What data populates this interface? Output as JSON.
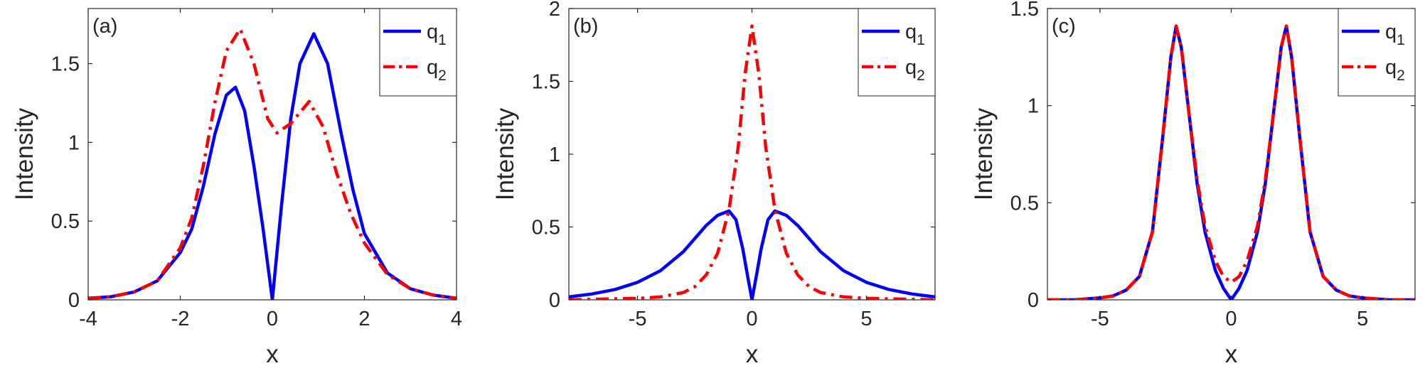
{
  "figure": {
    "colors": {
      "series1": "#0000ff",
      "series2": "#ff0000",
      "axis": "#262626"
    }
  },
  "chart_data": [
    {
      "type": "line",
      "panel_label": "(a)",
      "xlabel": "x",
      "ylabel": "Intensity",
      "xlim": [
        -4,
        4
      ],
      "ylim": [
        0,
        1.85
      ],
      "xticks": [
        -4,
        -2,
        0,
        2,
        4
      ],
      "xtick_labels": [
        "-4",
        "-2",
        "0",
        "2",
        "4"
      ],
      "yticks": [
        0,
        0.5,
        1,
        1.5
      ],
      "ytick_labels": [
        "0",
        "0.5",
        "1",
        "1.5"
      ],
      "grid": false,
      "legend": {
        "position": "top-right",
        "entries": [
          {
            "base": "q",
            "sub": "1",
            "style": "solid"
          },
          {
            "base": "q",
            "sub": "2",
            "style": "dashdot"
          }
        ]
      },
      "series": [
        {
          "style": "solid",
          "color": "#0000ff",
          "x": [
            -4,
            -3.5,
            -3,
            -2.5,
            -2,
            -1.75,
            -1.5,
            -1.25,
            -1,
            -0.8,
            -0.6,
            -0.4,
            -0.2,
            0,
            0.2,
            0.4,
            0.6,
            0.9,
            1.2,
            1.5,
            1.75,
            2,
            2.5,
            3,
            3.5,
            4
          ],
          "y": [
            0.01,
            0.02,
            0.05,
            0.12,
            0.3,
            0.45,
            0.72,
            1.05,
            1.3,
            1.35,
            1.2,
            0.85,
            0.45,
            0,
            0.6,
            1.15,
            1.5,
            1.69,
            1.5,
            1.05,
            0.7,
            0.42,
            0.17,
            0.07,
            0.03,
            0.01
          ]
        },
        {
          "style": "dashdot",
          "color": "#ff0000",
          "x": [
            -4,
            -3.5,
            -3,
            -2.5,
            -2,
            -1.75,
            -1.5,
            -1.25,
            -1,
            -0.7,
            -0.4,
            -0.1,
            0.1,
            0.4,
            0.8,
            1.1,
            1.4,
            1.7,
            2,
            2.5,
            3,
            3.5,
            4
          ],
          "y": [
            0.01,
            0.02,
            0.05,
            0.12,
            0.33,
            0.52,
            0.85,
            1.25,
            1.58,
            1.72,
            1.5,
            1.15,
            1.06,
            1.12,
            1.26,
            1.1,
            0.8,
            0.55,
            0.36,
            0.16,
            0.07,
            0.03,
            0.01
          ]
        }
      ]
    },
    {
      "type": "line",
      "panel_label": "(b)",
      "xlabel": "x",
      "ylabel": "Intensity",
      "xlim": [
        -8,
        8
      ],
      "ylim": [
        0,
        2
      ],
      "xticks": [
        -5,
        0,
        5
      ],
      "xtick_labels": [
        "-5",
        "0",
        "5"
      ],
      "yticks": [
        0,
        0.5,
        1,
        1.5,
        2
      ],
      "ytick_labels": [
        "0",
        "0.5",
        "1",
        "1.5",
        "2"
      ],
      "grid": false,
      "legend": {
        "position": "top-right",
        "entries": [
          {
            "base": "q",
            "sub": "1",
            "style": "solid"
          },
          {
            "base": "q",
            "sub": "2",
            "style": "dashdot"
          }
        ]
      },
      "series": [
        {
          "style": "solid",
          "color": "#0000ff",
          "x": [
            -8,
            -7,
            -6,
            -5,
            -4,
            -3,
            -2.5,
            -2,
            -1.5,
            -1,
            -0.7,
            -0.4,
            -0.2,
            0,
            0.2,
            0.4,
            0.7,
            1,
            1.5,
            2,
            2.5,
            3,
            4,
            5,
            6,
            7,
            8
          ],
          "y": [
            0.02,
            0.04,
            0.07,
            0.12,
            0.2,
            0.33,
            0.42,
            0.51,
            0.58,
            0.61,
            0.55,
            0.35,
            0.17,
            0,
            0.17,
            0.35,
            0.55,
            0.61,
            0.58,
            0.51,
            0.42,
            0.33,
            0.2,
            0.12,
            0.07,
            0.04,
            0.02
          ]
        },
        {
          "style": "dashdot",
          "color": "#ff0000",
          "x": [
            -8,
            -5,
            -4,
            -3,
            -2.5,
            -2,
            -1.5,
            -1,
            -0.6,
            -0.3,
            0,
            0.3,
            0.6,
            1,
            1.5,
            2,
            2.5,
            3,
            4,
            5,
            8
          ],
          "y": [
            0,
            0.01,
            0.02,
            0.05,
            0.09,
            0.17,
            0.32,
            0.62,
            1.05,
            1.55,
            1.88,
            1.55,
            1.05,
            0.62,
            0.32,
            0.17,
            0.09,
            0.05,
            0.02,
            0.01,
            0
          ]
        }
      ]
    },
    {
      "type": "line",
      "panel_label": "(c)",
      "xlabel": "x",
      "ylabel": "Intensity",
      "xlim": [
        -7,
        7
      ],
      "ylim": [
        0,
        1.5
      ],
      "xticks": [
        -5,
        0,
        5
      ],
      "xtick_labels": [
        "-5",
        "0",
        "5"
      ],
      "yticks": [
        0,
        0.5,
        1,
        1.5
      ],
      "ytick_labels": [
        "0",
        "0.5",
        "1",
        "1.5"
      ],
      "grid": false,
      "legend": {
        "position": "top-right",
        "entries": [
          {
            "base": "q",
            "sub": "1",
            "style": "solid"
          },
          {
            "base": "q",
            "sub": "2",
            "style": "dashdot"
          }
        ]
      },
      "series": [
        {
          "style": "solid",
          "color": "#0000ff",
          "x": [
            -7,
            -6,
            -5,
            -4.5,
            -4,
            -3.5,
            -3,
            -2.6,
            -2.3,
            -2.1,
            -1.9,
            -1.6,
            -1.3,
            -1,
            -0.6,
            -0.3,
            0,
            0.3,
            0.6,
            1,
            1.3,
            1.6,
            1.9,
            2.1,
            2.3,
            2.6,
            3,
            3.5,
            4,
            4.5,
            5,
            6,
            7
          ],
          "y": [
            0,
            0,
            0.01,
            0.02,
            0.05,
            0.12,
            0.35,
            0.85,
            1.25,
            1.41,
            1.3,
            0.95,
            0.6,
            0.35,
            0.15,
            0.06,
            0,
            0.06,
            0.15,
            0.35,
            0.6,
            0.95,
            1.3,
            1.41,
            1.25,
            0.85,
            0.35,
            0.12,
            0.05,
            0.02,
            0.01,
            0,
            0
          ]
        },
        {
          "style": "dashdot",
          "color": "#ff0000",
          "x": [
            -7,
            -6,
            -5,
            -4.5,
            -4,
            -3.5,
            -3,
            -2.6,
            -2.3,
            -2.1,
            -1.9,
            -1.6,
            -1.3,
            -1,
            -0.6,
            -0.3,
            0,
            0.3,
            0.6,
            1,
            1.3,
            1.6,
            1.9,
            2.1,
            2.3,
            2.6,
            3,
            3.5,
            4,
            4.5,
            5,
            6,
            7
          ],
          "y": [
            0,
            0,
            0.01,
            0.02,
            0.05,
            0.12,
            0.35,
            0.85,
            1.25,
            1.41,
            1.3,
            0.95,
            0.62,
            0.38,
            0.2,
            0.12,
            0.09,
            0.12,
            0.2,
            0.38,
            0.62,
            0.95,
            1.3,
            1.41,
            1.25,
            0.85,
            0.35,
            0.12,
            0.05,
            0.02,
            0.01,
            0,
            0
          ]
        }
      ]
    }
  ]
}
